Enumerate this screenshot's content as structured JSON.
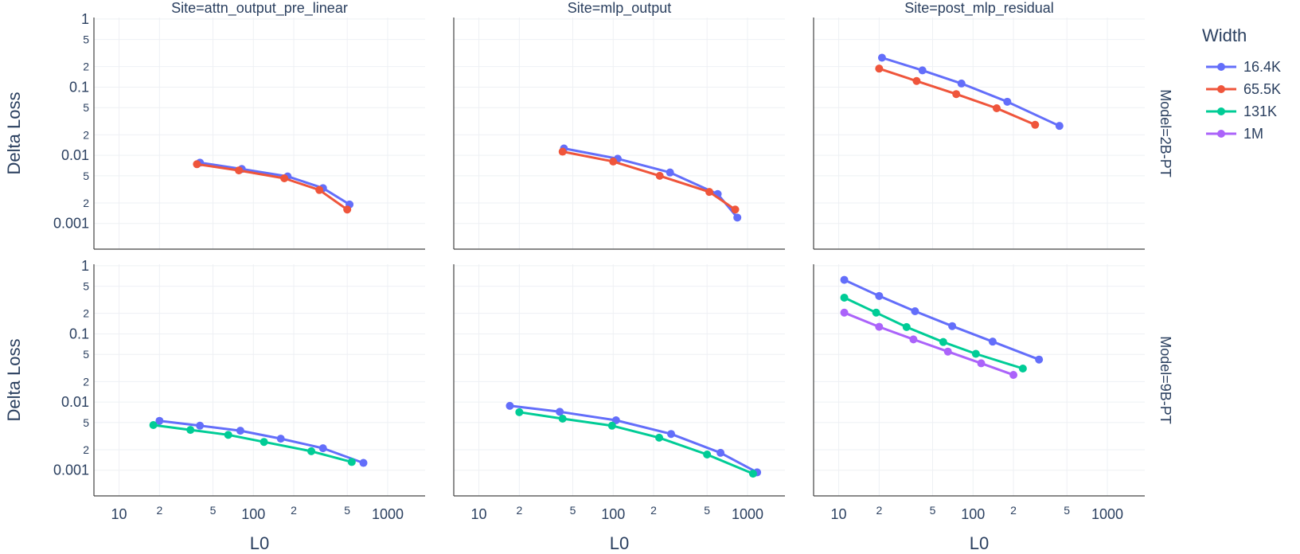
{
  "chart_data": {
    "type": "line",
    "facet_grid": {
      "columns": 3,
      "rows": 2
    },
    "x_axis": {
      "title": "L0",
      "scale": "log",
      "range": [
        6.5,
        1900
      ],
      "major_ticks": [
        {
          "value": 10,
          "label": "10"
        },
        {
          "value": 100,
          "label": "100"
        },
        {
          "value": 1000,
          "label": "1000"
        }
      ],
      "minor_ticks": [
        {
          "value": 20,
          "label": "2"
        },
        {
          "value": 50,
          "label": "5"
        },
        {
          "value": 200,
          "label": "2"
        },
        {
          "value": 500,
          "label": "5"
        }
      ]
    },
    "y_axis": {
      "title": "Delta Loss",
      "scale": "log",
      "range": [
        0.00042,
        1.05
      ],
      "major_ticks": [
        {
          "value": 1,
          "label": "1"
        },
        {
          "value": 0.1,
          "label": "0.1"
        },
        {
          "value": 0.01,
          "label": "0.01"
        },
        {
          "value": 0.001,
          "label": "0.001"
        }
      ],
      "minor_ticks": [
        {
          "value": 0.5,
          "label": "5"
        },
        {
          "value": 0.2,
          "label": "2"
        },
        {
          "value": 0.05,
          "label": "5"
        },
        {
          "value": 0.02,
          "label": "2"
        },
        {
          "value": 0.005,
          "label": "5"
        },
        {
          "value": 0.002,
          "label": "2"
        }
      ]
    },
    "legend": {
      "title": "Width",
      "position": "right",
      "entries": [
        {
          "name": "16.4K",
          "color": "#636efa"
        },
        {
          "name": "65.5K",
          "color": "#ef553b"
        },
        {
          "name": "131K",
          "color": "#00cc96"
        },
        {
          "name": "1M",
          "color": "#ab63fa"
        }
      ]
    },
    "columns": [
      {
        "title": "Site=attn_output_pre_linear"
      },
      {
        "title": "Site=mlp_output"
      },
      {
        "title": "Site=post_mlp_residual"
      }
    ],
    "rows": [
      {
        "label": "Model=2B-PT"
      },
      {
        "label": "Model=9B-PT"
      }
    ],
    "panels": [
      {
        "row": 0,
        "col": 0,
        "series": [
          {
            "name": "16.4K",
            "x": [
              40,
              82,
              180,
              330,
              520
            ],
            "y": [
              0.0078,
              0.0063,
              0.0049,
              0.0033,
              0.0019
            ]
          },
          {
            "name": "65.5K",
            "x": [
              38,
              78,
              170,
              310,
              500
            ],
            "y": [
              0.0074,
              0.006,
              0.0046,
              0.0031,
              0.0016
            ]
          }
        ]
      },
      {
        "row": 0,
        "col": 1,
        "series": [
          {
            "name": "16.4K",
            "x": [
              43,
              108,
              265,
              600,
              840
            ],
            "y": [
              0.0126,
              0.0089,
              0.0056,
              0.0027,
              0.00122
            ]
          },
          {
            "name": "65.5K",
            "x": [
              42,
              100,
              222,
              520,
              810
            ],
            "y": [
              0.0113,
              0.0081,
              0.005,
              0.0029,
              0.0016
            ]
          }
        ]
      },
      {
        "row": 0,
        "col": 2,
        "series": [
          {
            "name": "16.4K",
            "x": [
              21,
              42,
              82,
              180,
              440
            ],
            "y": [
              0.27,
              0.176,
              0.113,
              0.061,
              0.027
            ]
          },
          {
            "name": "65.5K",
            "x": [
              20,
              38,
              75,
              150,
              290
            ],
            "y": [
              0.187,
              0.123,
              0.079,
              0.049,
              0.028
            ]
          }
        ]
      },
      {
        "row": 1,
        "col": 0,
        "series": [
          {
            "name": "16.4K",
            "x": [
              20,
              40,
              80,
              160,
              330,
              660
            ],
            "y": [
              0.0053,
              0.0045,
              0.0038,
              0.0029,
              0.0021,
              0.00128
            ]
          },
          {
            "name": "131K",
            "x": [
              18,
              34,
              65,
              120,
              270,
              540
            ],
            "y": [
              0.0046,
              0.0039,
              0.0033,
              0.0026,
              0.0019,
              0.00132
            ]
          }
        ]
      },
      {
        "row": 1,
        "col": 1,
        "series": [
          {
            "name": "16.4K",
            "x": [
              17,
              40,
              105,
              270,
              630,
              1180
            ],
            "y": [
              0.0088,
              0.0072,
              0.0054,
              0.0034,
              0.0018,
              0.00093
            ]
          },
          {
            "name": "131K",
            "x": [
              20,
              42,
              98,
              220,
              500,
              1100
            ],
            "y": [
              0.0071,
              0.0057,
              0.0045,
              0.003,
              0.0017,
              0.00089
            ]
          }
        ]
      },
      {
        "row": 1,
        "col": 2,
        "series": [
          {
            "name": "16.4K",
            "x": [
              11,
              20,
              37,
              70,
              140,
              310
            ],
            "y": [
              0.62,
              0.36,
              0.215,
              0.13,
              0.077,
              0.042
            ]
          },
          {
            "name": "131K",
            "x": [
              11,
              19,
              32,
              60,
              105,
              235
            ],
            "y": [
              0.34,
              0.205,
              0.126,
              0.076,
              0.051,
              0.031
            ]
          },
          {
            "name": "1M",
            "x": [
              11,
              20,
              36,
              65,
              115,
              200
            ],
            "y": [
              0.205,
              0.127,
              0.083,
              0.055,
              0.037,
              0.025
            ]
          }
        ]
      }
    ]
  }
}
